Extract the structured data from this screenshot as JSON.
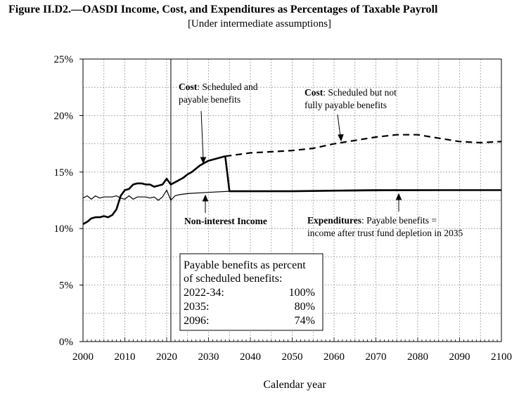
{
  "chart_data": {
    "type": "line",
    "title": "Figure II.D2.—OASDI Income, Cost, and Expenditures as Percentages of Taxable Payroll",
    "subtitle": "[Under intermediate assumptions]",
    "xlabel": "Calendar year",
    "ylabel": "",
    "xlim": [
      2000,
      2100
    ],
    "ylim": [
      0,
      25
    ],
    "x_ticks": [
      "2000",
      "2010",
      "2020",
      "2030",
      "2040",
      "2050",
      "2060",
      "2070",
      "2080",
      "2090",
      "2100"
    ],
    "y_ticks": [
      "0%",
      "5%",
      "10%",
      "15%",
      "20%",
      "25%"
    ],
    "grid": true,
    "vertical_marker_year": 2021,
    "series": [
      {
        "key": "cost_historical",
        "style": "solid-bold",
        "points": [
          [
            2000,
            10.4
          ],
          [
            2001,
            10.6
          ],
          [
            2002,
            10.9
          ],
          [
            2003,
            11.0
          ],
          [
            2004,
            11.0
          ],
          [
            2005,
            11.1
          ],
          [
            2006,
            11.0
          ],
          [
            2007,
            11.2
          ],
          [
            2008,
            11.7
          ],
          [
            2009,
            12.9
          ],
          [
            2010,
            13.4
          ],
          [
            2011,
            13.5
          ],
          [
            2012,
            13.9
          ],
          [
            2013,
            14.0
          ],
          [
            2014,
            14.0
          ],
          [
            2015,
            13.9
          ],
          [
            2016,
            13.9
          ],
          [
            2017,
            13.7
          ],
          [
            2018,
            13.8
          ],
          [
            2019,
            13.9
          ],
          [
            2020,
            14.4
          ],
          [
            2021,
            13.9
          ],
          [
            2022,
            14.1
          ],
          [
            2023,
            14.3
          ],
          [
            2024,
            14.5
          ],
          [
            2025,
            14.8
          ],
          [
            2026,
            15.0
          ],
          [
            2027,
            15.3
          ],
          [
            2028,
            15.6
          ],
          [
            2029,
            15.8
          ],
          [
            2030,
            16.0
          ],
          [
            2031,
            16.1
          ],
          [
            2032,
            16.2
          ],
          [
            2033,
            16.3
          ],
          [
            2034,
            16.4
          ]
        ]
      },
      {
        "key": "cost_not_payable",
        "style": "dashed",
        "points": [
          [
            2034,
            16.4
          ],
          [
            2040,
            16.7
          ],
          [
            2045,
            16.8
          ],
          [
            2050,
            16.9
          ],
          [
            2055,
            17.1
          ],
          [
            2060,
            17.5
          ],
          [
            2065,
            17.8
          ],
          [
            2070,
            18.1
          ],
          [
            2075,
            18.3
          ],
          [
            2080,
            18.3
          ],
          [
            2085,
            18.0
          ],
          [
            2090,
            17.7
          ],
          [
            2095,
            17.6
          ],
          [
            2100,
            17.7
          ]
        ]
      },
      {
        "key": "expenditures",
        "style": "solid-bold",
        "points": [
          [
            2034,
            16.4
          ],
          [
            2035,
            13.3
          ],
          [
            2050,
            13.3
          ],
          [
            2070,
            13.4
          ],
          [
            2080,
            13.4
          ],
          [
            2100,
            13.4
          ]
        ]
      },
      {
        "key": "non_interest_income",
        "style": "solid-thin",
        "points": [
          [
            2000,
            12.7
          ],
          [
            2001,
            12.9
          ],
          [
            2002,
            12.6
          ],
          [
            2003,
            12.9
          ],
          [
            2004,
            12.7
          ],
          [
            2005,
            12.8
          ],
          [
            2006,
            12.8
          ],
          [
            2007,
            12.8
          ],
          [
            2008,
            12.9
          ],
          [
            2009,
            12.7
          ],
          [
            2010,
            12.6
          ],
          [
            2011,
            12.9
          ],
          [
            2012,
            12.6
          ],
          [
            2013,
            12.8
          ],
          [
            2014,
            12.8
          ],
          [
            2015,
            12.8
          ],
          [
            2016,
            12.7
          ],
          [
            2017,
            12.8
          ],
          [
            2018,
            12.5
          ],
          [
            2019,
            12.8
          ],
          [
            2020,
            13.4
          ],
          [
            2021,
            12.5
          ],
          [
            2022,
            12.9
          ],
          [
            2023,
            13.0
          ],
          [
            2025,
            13.1
          ],
          [
            2030,
            13.2
          ],
          [
            2035,
            13.3
          ],
          [
            2050,
            13.3
          ],
          [
            2100,
            13.4
          ]
        ]
      }
    ],
    "annotations": {
      "cost_scheduled": {
        "bold": "Cost",
        "rest": ": Scheduled and",
        "line2": "payable benefits"
      },
      "cost_not_fully": {
        "bold": "Cost",
        "rest": ": Scheduled but not",
        "line2": "fully payable benefits"
      },
      "non_interest_income": "Non-interest Income",
      "expenditures": {
        "bold": "Expenditures",
        "rest": ": Payable benefits =",
        "line2": "income after trust fund depletion in 2035"
      }
    },
    "table": {
      "header_line1": "Payable benefits as percent",
      "header_line2": "of scheduled benefits:",
      "rows": [
        {
          "label": "2022-34:",
          "value": "100%"
        },
        {
          "label": "2035:",
          "value": "80%"
        },
        {
          "label": "2096:",
          "value": "74%"
        }
      ]
    }
  }
}
